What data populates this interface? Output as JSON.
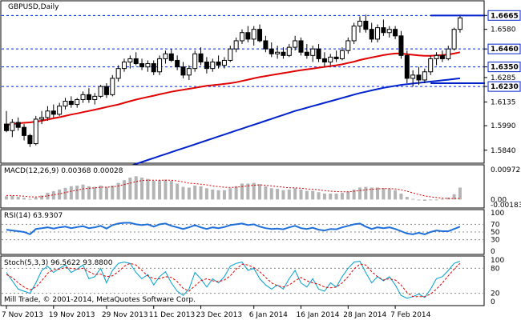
{
  "window": {
    "title": "GBPUSD,Daily",
    "copyright": "Mill Trade, © 2001-2014, MetaQuotes Software Corp."
  },
  "colors": {
    "background": "#ffffff",
    "frame": "#000000",
    "bull_candle": "#ffffff",
    "bear_candle": "#000000",
    "ma_fast": "#e00000",
    "ma_slow": "#0022cc",
    "hline": "#0022cc",
    "macd_hist": "#b4b4b4",
    "macd_signal": "#e00000",
    "rsi_line": "#1e6fd9",
    "stoch_main": "#00a0d0",
    "stoch_signal": "#e00000",
    "price_tag_bg": "#ffffff"
  },
  "chart_data": [
    {
      "type": "candlestick",
      "title": "GBPUSD,Daily",
      "ylim": [
        1.578,
        1.674
      ],
      "price_ticks": [
        "1.6665",
        "1.6580",
        "1.6460",
        "1.6350",
        "1.6285",
        "1.6230",
        "1.6135",
        "1.5990",
        "1.5840"
      ],
      "highlight_ticks": [
        "1.6665",
        "1.6460",
        "1.6350",
        "1.6230"
      ],
      "horizontal_levels": [
        1.6665,
        1.646,
        1.635,
        1.623
      ],
      "x_labels": [
        "7 Nov 2013",
        "19 Nov 2013",
        "29 Nov 2013",
        "11 Dec 2013",
        "23 Dec 2013",
        "6 Jan 2014",
        "16 Jan 2014",
        "28 Jan 2014",
        "7 Feb 2014"
      ],
      "resistance_line": {
        "value": 1.6665,
        "from_index": 72,
        "to_index": 91
      },
      "support_line": {
        "value": 1.625,
        "from_index": 72,
        "to_index": 91
      },
      "candles": [
        {
          "o": 1.6,
          "h": 1.608,
          "l": 1.595,
          "c": 1.596
        },
        {
          "o": 1.596,
          "h": 1.603,
          "l": 1.592,
          "c": 1.601
        },
        {
          "o": 1.601,
          "h": 1.604,
          "l": 1.596,
          "c": 1.598
        },
        {
          "o": 1.598,
          "h": 1.6,
          "l": 1.59,
          "c": 1.593
        },
        {
          "o": 1.593,
          "h": 1.594,
          "l": 1.586,
          "c": 1.588
        },
        {
          "o": 1.588,
          "h": 1.605,
          "l": 1.587,
          "c": 1.603
        },
        {
          "o": 1.603,
          "h": 1.608,
          "l": 1.6,
          "c": 1.604
        },
        {
          "o": 1.604,
          "h": 1.611,
          "l": 1.602,
          "c": 1.608
        },
        {
          "o": 1.608,
          "h": 1.612,
          "l": 1.604,
          "c": 1.606
        },
        {
          "o": 1.606,
          "h": 1.613,
          "l": 1.605,
          "c": 1.611
        },
        {
          "o": 1.611,
          "h": 1.616,
          "l": 1.609,
          "c": 1.614
        },
        {
          "o": 1.614,
          "h": 1.617,
          "l": 1.61,
          "c": 1.612
        },
        {
          "o": 1.612,
          "h": 1.616,
          "l": 1.61,
          "c": 1.615
        },
        {
          "o": 1.615,
          "h": 1.62,
          "l": 1.613,
          "c": 1.618
        },
        {
          "o": 1.618,
          "h": 1.622,
          "l": 1.613,
          "c": 1.615
        },
        {
          "o": 1.615,
          "h": 1.619,
          "l": 1.612,
          "c": 1.617
        },
        {
          "o": 1.617,
          "h": 1.624,
          "l": 1.616,
          "c": 1.623
        },
        {
          "o": 1.623,
          "h": 1.625,
          "l": 1.616,
          "c": 1.618
        },
        {
          "o": 1.618,
          "h": 1.63,
          "l": 1.617,
          "c": 1.628
        },
        {
          "o": 1.628,
          "h": 1.636,
          "l": 1.626,
          "c": 1.634
        },
        {
          "o": 1.634,
          "h": 1.64,
          "l": 1.632,
          "c": 1.638
        },
        {
          "o": 1.638,
          "h": 1.642,
          "l": 1.634,
          "c": 1.64
        },
        {
          "o": 1.64,
          "h": 1.644,
          "l": 1.636,
          "c": 1.637
        },
        {
          "o": 1.637,
          "h": 1.64,
          "l": 1.633,
          "c": 1.635
        },
        {
          "o": 1.635,
          "h": 1.639,
          "l": 1.632,
          "c": 1.637
        },
        {
          "o": 1.637,
          "h": 1.639,
          "l": 1.63,
          "c": 1.632
        },
        {
          "o": 1.632,
          "h": 1.642,
          "l": 1.63,
          "c": 1.64
        },
        {
          "o": 1.64,
          "h": 1.645,
          "l": 1.637,
          "c": 1.643
        },
        {
          "o": 1.643,
          "h": 1.646,
          "l": 1.638,
          "c": 1.639
        },
        {
          "o": 1.639,
          "h": 1.642,
          "l": 1.633,
          "c": 1.635
        },
        {
          "o": 1.635,
          "h": 1.638,
          "l": 1.628,
          "c": 1.63
        },
        {
          "o": 1.63,
          "h": 1.636,
          "l": 1.627,
          "c": 1.634
        },
        {
          "o": 1.634,
          "h": 1.645,
          "l": 1.632,
          "c": 1.643
        },
        {
          "o": 1.643,
          "h": 1.647,
          "l": 1.636,
          "c": 1.638
        },
        {
          "o": 1.638,
          "h": 1.641,
          "l": 1.631,
          "c": 1.634
        },
        {
          "o": 1.634,
          "h": 1.64,
          "l": 1.632,
          "c": 1.638
        },
        {
          "o": 1.638,
          "h": 1.642,
          "l": 1.634,
          "c": 1.636
        },
        {
          "o": 1.636,
          "h": 1.641,
          "l": 1.634,
          "c": 1.639
        },
        {
          "o": 1.639,
          "h": 1.648,
          "l": 1.638,
          "c": 1.646
        },
        {
          "o": 1.646,
          "h": 1.653,
          "l": 1.644,
          "c": 1.651
        },
        {
          "o": 1.651,
          "h": 1.658,
          "l": 1.649,
          "c": 1.656
        },
        {
          "o": 1.656,
          "h": 1.66,
          "l": 1.65,
          "c": 1.652
        },
        {
          "o": 1.652,
          "h": 1.66,
          "l": 1.648,
          "c": 1.658
        },
        {
          "o": 1.658,
          "h": 1.661,
          "l": 1.65,
          "c": 1.651
        },
        {
          "o": 1.651,
          "h": 1.654,
          "l": 1.644,
          "c": 1.646
        },
        {
          "o": 1.646,
          "h": 1.65,
          "l": 1.641,
          "c": 1.643
        },
        {
          "o": 1.643,
          "h": 1.648,
          "l": 1.64,
          "c": 1.644
        },
        {
          "o": 1.644,
          "h": 1.647,
          "l": 1.64,
          "c": 1.642
        },
        {
          "o": 1.642,
          "h": 1.649,
          "l": 1.641,
          "c": 1.647
        },
        {
          "o": 1.647,
          "h": 1.654,
          "l": 1.645,
          "c": 1.651
        },
        {
          "o": 1.651,
          "h": 1.653,
          "l": 1.642,
          "c": 1.644
        },
        {
          "o": 1.644,
          "h": 1.649,
          "l": 1.64,
          "c": 1.642
        },
        {
          "o": 1.642,
          "h": 1.648,
          "l": 1.638,
          "c": 1.646
        },
        {
          "o": 1.646,
          "h": 1.649,
          "l": 1.638,
          "c": 1.64
        },
        {
          "o": 1.64,
          "h": 1.644,
          "l": 1.635,
          "c": 1.638
        },
        {
          "o": 1.638,
          "h": 1.643,
          "l": 1.636,
          "c": 1.641
        },
        {
          "o": 1.641,
          "h": 1.645,
          "l": 1.638,
          "c": 1.64
        },
        {
          "o": 1.64,
          "h": 1.647,
          "l": 1.639,
          "c": 1.645
        },
        {
          "o": 1.645,
          "h": 1.653,
          "l": 1.643,
          "c": 1.651
        },
        {
          "o": 1.651,
          "h": 1.662,
          "l": 1.649,
          "c": 1.66
        },
        {
          "o": 1.66,
          "h": 1.666,
          "l": 1.656,
          "c": 1.663
        },
        {
          "o": 1.663,
          "h": 1.667,
          "l": 1.656,
          "c": 1.658
        },
        {
          "o": 1.658,
          "h": 1.662,
          "l": 1.65,
          "c": 1.652
        },
        {
          "o": 1.652,
          "h": 1.661,
          "l": 1.65,
          "c": 1.659
        },
        {
          "o": 1.659,
          "h": 1.664,
          "l": 1.654,
          "c": 1.656
        },
        {
          "o": 1.656,
          "h": 1.66,
          "l": 1.653,
          "c": 1.658
        },
        {
          "o": 1.658,
          "h": 1.66,
          "l": 1.652,
          "c": 1.654
        },
        {
          "o": 1.654,
          "h": 1.657,
          "l": 1.64,
          "c": 1.642
        },
        {
          "o": 1.642,
          "h": 1.645,
          "l": 1.625,
          "c": 1.628
        },
        {
          "o": 1.628,
          "h": 1.633,
          "l": 1.623,
          "c": 1.63
        },
        {
          "o": 1.63,
          "h": 1.635,
          "l": 1.624,
          "c": 1.627
        },
        {
          "o": 1.627,
          "h": 1.634,
          "l": 1.625,
          "c": 1.632
        },
        {
          "o": 1.632,
          "h": 1.642,
          "l": 1.63,
          "c": 1.64
        },
        {
          "o": 1.64,
          "h": 1.644,
          "l": 1.636,
          "c": 1.642
        },
        {
          "o": 1.642,
          "h": 1.645,
          "l": 1.638,
          "c": 1.64
        },
        {
          "o": 1.64,
          "h": 1.648,
          "l": 1.639,
          "c": 1.646
        },
        {
          "o": 1.646,
          "h": 1.659,
          "l": 1.645,
          "c": 1.658
        },
        {
          "o": 1.658,
          "h": 1.667,
          "l": 1.656,
          "c": 1.665
        }
      ],
      "ma_fast": [
        1.5995,
        1.6,
        1.6005,
        1.6008,
        1.601,
        1.6015,
        1.602,
        1.6028,
        1.6035,
        1.6042,
        1.605,
        1.6058,
        1.6065,
        1.6073,
        1.608,
        1.6088,
        1.6096,
        1.6104,
        1.6112,
        1.612,
        1.613,
        1.614,
        1.615,
        1.6158,
        1.6166,
        1.6174,
        1.6182,
        1.619,
        1.6198,
        1.6204,
        1.621,
        1.6216,
        1.6222,
        1.6228,
        1.6234,
        1.6238,
        1.6242,
        1.6246,
        1.625,
        1.6256,
        1.6264,
        1.6272,
        1.628,
        1.6288,
        1.6294,
        1.63,
        1.6306,
        1.6312,
        1.6318,
        1.6324,
        1.633,
        1.6335,
        1.634,
        1.6345,
        1.635,
        1.6355,
        1.636,
        1.6366,
        1.6374,
        1.6382,
        1.6392,
        1.64,
        1.6408,
        1.6415,
        1.6422,
        1.6428,
        1.6432,
        1.6432,
        1.6428,
        1.6424,
        1.642,
        1.6418,
        1.6418,
        1.642,
        1.6422,
        1.6426,
        1.6432,
        1.644
      ],
      "ma_slow": [
        1.552,
        1.553,
        1.554,
        1.555,
        1.556,
        1.557,
        1.558,
        1.559,
        1.56,
        1.561,
        1.562,
        1.563,
        1.564,
        1.565,
        1.566,
        1.5672,
        1.5684,
        1.5696,
        1.5708,
        1.572,
        1.5732,
        1.5744,
        1.5756,
        1.5768,
        1.578,
        1.5792,
        1.5804,
        1.5816,
        1.5828,
        1.584,
        1.5852,
        1.5864,
        1.5876,
        1.5888,
        1.59,
        1.5912,
        1.5924,
        1.5936,
        1.5948,
        1.596,
        1.5972,
        1.5984,
        1.5996,
        1.6008,
        1.602,
        1.6032,
        1.6044,
        1.6056,
        1.6068,
        1.608,
        1.609,
        1.61,
        1.611,
        1.612,
        1.613,
        1.614,
        1.615,
        1.616,
        1.617,
        1.618,
        1.619,
        1.6198,
        1.6206,
        1.6214,
        1.6222,
        1.6228,
        1.6234,
        1.624,
        1.6244,
        1.6248,
        1.6252,
        1.6256,
        1.626,
        1.6264,
        1.6268,
        1.6272,
        1.6276,
        1.628
      ]
    },
    {
      "type": "bar",
      "title": "MACD(12,26,9) 0.00368 0.00028",
      "ylim": [
        -0.00183,
        0.00972
      ],
      "ticks": [
        "0.00972",
        "0.00",
        "-0.00183"
      ],
      "histogram": [
        0.001,
        0.0012,
        0.0008,
        0.0005,
        0.0002,
        0.0006,
        0.0012,
        0.002,
        0.0025,
        0.003,
        0.0035,
        0.004,
        0.0042,
        0.0045,
        0.004,
        0.0038,
        0.0042,
        0.0038,
        0.0042,
        0.005,
        0.0058,
        0.0066,
        0.007,
        0.0066,
        0.0062,
        0.0056,
        0.0058,
        0.006,
        0.0056,
        0.0048,
        0.0038,
        0.0036,
        0.0042,
        0.004,
        0.0034,
        0.003,
        0.0028,
        0.0028,
        0.0034,
        0.004,
        0.0048,
        0.0048,
        0.005,
        0.0046,
        0.004,
        0.0034,
        0.0032,
        0.0028,
        0.003,
        0.0034,
        0.003,
        0.0026,
        0.0026,
        0.0022,
        0.0018,
        0.0018,
        0.0018,
        0.002,
        0.0024,
        0.003,
        0.0036,
        0.0038,
        0.0036,
        0.0036,
        0.0034,
        0.0032,
        0.0028,
        0.0018,
        0.0008,
        0.0002,
        -0.0002,
        -0.0004,
        -0.0002,
        0.0,
        0.0002,
        0.0006,
        0.0016,
        0.0036
      ],
      "signal": [
        0.0012,
        0.0012,
        0.0011,
        0.001,
        0.0008,
        0.0008,
        0.0009,
        0.0011,
        0.0014,
        0.0017,
        0.0021,
        0.0025,
        0.0028,
        0.0032,
        0.0034,
        0.0035,
        0.0037,
        0.0037,
        0.0038,
        0.0041,
        0.0045,
        0.0049,
        0.0054,
        0.0057,
        0.0058,
        0.0058,
        0.0058,
        0.0058,
        0.0058,
        0.0056,
        0.0053,
        0.0049,
        0.0048,
        0.0046,
        0.0044,
        0.0041,
        0.0039,
        0.0037,
        0.0036,
        0.0037,
        0.0039,
        0.0041,
        0.0043,
        0.0044,
        0.0043,
        0.0041,
        0.0039,
        0.0037,
        0.0035,
        0.0035,
        0.0034,
        0.0032,
        0.0031,
        0.0029,
        0.0027,
        0.0025,
        0.0024,
        0.0023,
        0.0023,
        0.0025,
        0.0027,
        0.0029,
        0.0031,
        0.0032,
        0.0033,
        0.0033,
        0.0032,
        0.0029,
        0.0025,
        0.002,
        0.0015,
        0.0011,
        0.0008,
        0.0006,
        0.0004,
        0.0003,
        0.0003,
        0.0003
      ]
    },
    {
      "type": "line",
      "title": "RSI(14) 63.9307",
      "ylim": [
        0,
        100
      ],
      "ticks": [
        "100",
        "70",
        "50",
        "30",
        "0"
      ],
      "levels": [
        70,
        50,
        30
      ],
      "values": [
        56,
        54,
        52,
        50,
        44,
        58,
        60,
        62,
        59,
        62,
        64,
        60,
        63,
        65,
        60,
        62,
        66,
        59,
        68,
        72,
        74,
        74,
        70,
        68,
        70,
        64,
        70,
        72,
        66,
        62,
        58,
        62,
        68,
        62,
        58,
        62,
        60,
        63,
        68,
        70,
        72,
        68,
        70,
        64,
        60,
        58,
        59,
        57,
        62,
        66,
        60,
        58,
        61,
        56,
        54,
        58,
        57,
        62,
        66,
        70,
        72,
        64,
        58,
        62,
        60,
        62,
        58,
        52,
        46,
        44,
        48,
        44,
        50,
        54,
        52,
        52,
        58,
        64
      ]
    },
    {
      "type": "line",
      "title": "Stoch(5,3,3) 96.5622 93.8800",
      "ylim": [
        0,
        100
      ],
      "ticks": [
        "100",
        "80",
        "20",
        "0"
      ],
      "levels": [
        80,
        20
      ],
      "main": [
        70,
        50,
        30,
        25,
        20,
        45,
        75,
        85,
        70,
        80,
        88,
        70,
        78,
        88,
        55,
        60,
        80,
        45,
        75,
        92,
        95,
        92,
        70,
        55,
        65,
        40,
        60,
        72,
        45,
        25,
        15,
        30,
        70,
        55,
        35,
        55,
        45,
        60,
        85,
        92,
        95,
        75,
        80,
        55,
        40,
        30,
        40,
        30,
        55,
        75,
        45,
        35,
        55,
        30,
        25,
        45,
        35,
        60,
        80,
        95,
        97,
        70,
        45,
        60,
        50,
        60,
        40,
        15,
        8,
        12,
        18,
        10,
        30,
        55,
        60,
        75,
        92,
        97
      ],
      "signal": [
        65,
        58,
        45,
        35,
        28,
        35,
        50,
        68,
        77,
        78,
        82,
        80,
        78,
        80,
        72,
        65,
        66,
        60,
        62,
        72,
        85,
        92,
        88,
        75,
        62,
        55,
        55,
        60,
        58,
        48,
        32,
        25,
        38,
        50,
        55,
        50,
        48,
        52,
        62,
        78,
        90,
        88,
        82,
        72,
        58,
        45,
        38,
        35,
        40,
        50,
        58,
        50,
        45,
        42,
        35,
        33,
        35,
        45,
        60,
        78,
        90,
        88,
        72,
        60,
        52,
        55,
        52,
        40,
        22,
        12,
        12,
        12,
        18,
        30,
        45,
        62,
        78,
        92
      ]
    }
  ]
}
